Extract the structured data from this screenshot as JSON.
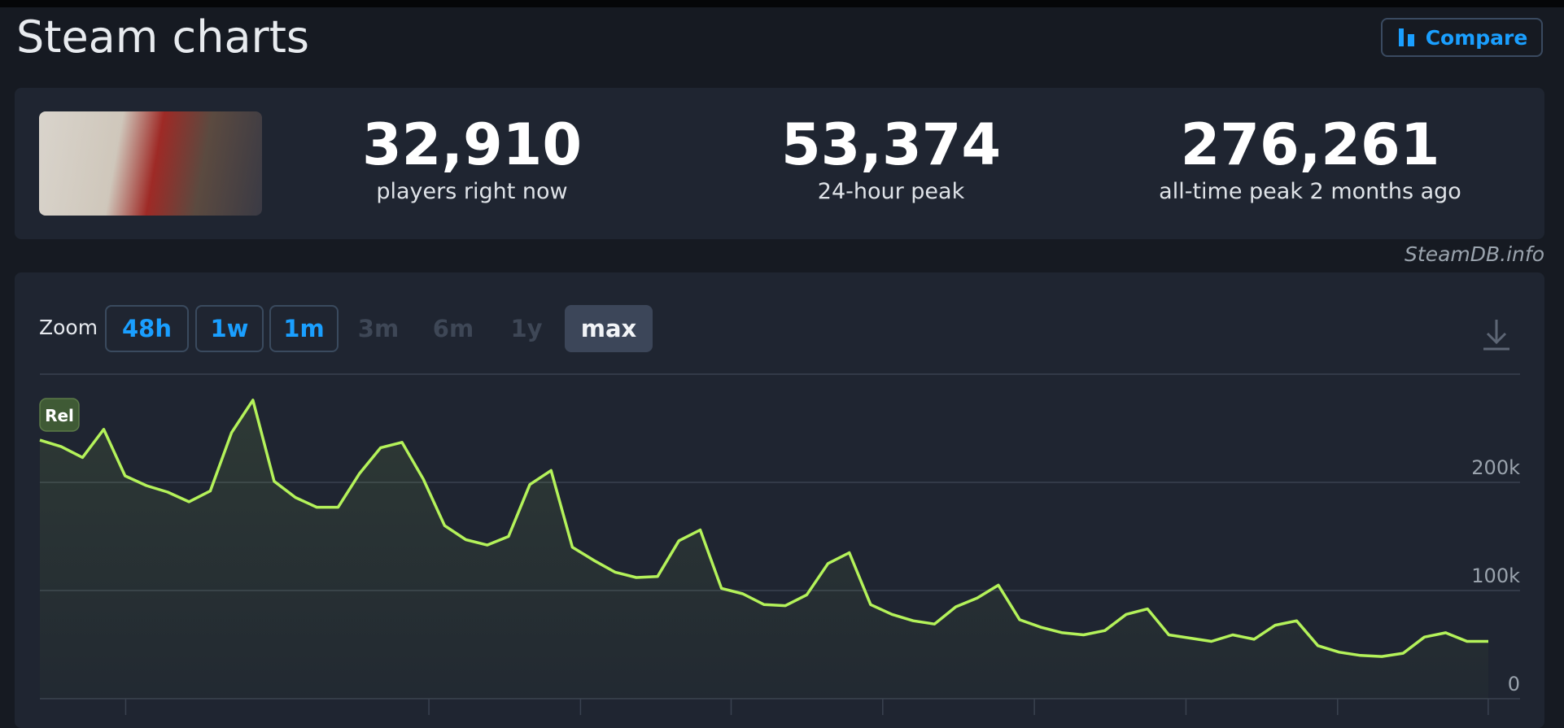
{
  "header": {
    "title": "Steam charts",
    "compare": "Compare"
  },
  "stats": [
    {
      "value": "32,910",
      "label": "players right now"
    },
    {
      "value": "53,374",
      "label": "24-hour peak"
    },
    {
      "value": "276,261",
      "label": "all-time peak 2 months ago"
    }
  ],
  "watermark": "SteamDB.info",
  "zoom": {
    "label": "Zoom",
    "buttons": [
      "48h",
      "1w",
      "1m",
      "3m",
      "6m",
      "1y",
      "max"
    ]
  },
  "chart_data": {
    "type": "line",
    "annotation": "Rel",
    "color": "#b4f25a",
    "grid": true,
    "categories": [
      null,
      null,
      null,
      null,
      null,
      null,
      null,
      null,
      null,
      null,
      null,
      null,
      null,
      null,
      null,
      null,
      null,
      null,
      null,
      null,
      null,
      null,
      null,
      null,
      null,
      null,
      null,
      null,
      null,
      null,
      null,
      null,
      null,
      null,
      null,
      null,
      null,
      null,
      null,
      null,
      null,
      null,
      null,
      null,
      null,
      null,
      null,
      null,
      null,
      null,
      null,
      null,
      null,
      null,
      null,
      null,
      null,
      null,
      null,
      null,
      null,
      null,
      null,
      null,
      null,
      null,
      null,
      null,
      null
    ],
    "values": [
      239000,
      233000,
      223000,
      249000,
      206000,
      197000,
      191000,
      182000,
      192000,
      246000,
      276000,
      201000,
      186000,
      177000,
      177000,
      208000,
      232000,
      237000,
      203000,
      160000,
      147000,
      142000,
      150000,
      198000,
      211000,
      140000,
      128000,
      117000,
      112000,
      113000,
      146000,
      156000,
      102000,
      97000,
      87000,
      86000,
      96000,
      125000,
      135000,
      87000,
      78000,
      72000,
      69000,
      85000,
      93000,
      105000,
      73000,
      66000,
      61000,
      59000,
      63000,
      78000,
      83000,
      59000,
      56000,
      53000,
      59000,
      55000,
      68000,
      72000,
      49000,
      43000,
      40000,
      39000,
      42000,
      57000,
      61000,
      53000,
      53000
    ],
    "ylim": [
      0,
      300000
    ],
    "yticks": [
      {
        "value": 0,
        "label": "0"
      },
      {
        "value": 100000,
        "label": "100k"
      },
      {
        "value": 200000,
        "label": "200k"
      }
    ]
  }
}
